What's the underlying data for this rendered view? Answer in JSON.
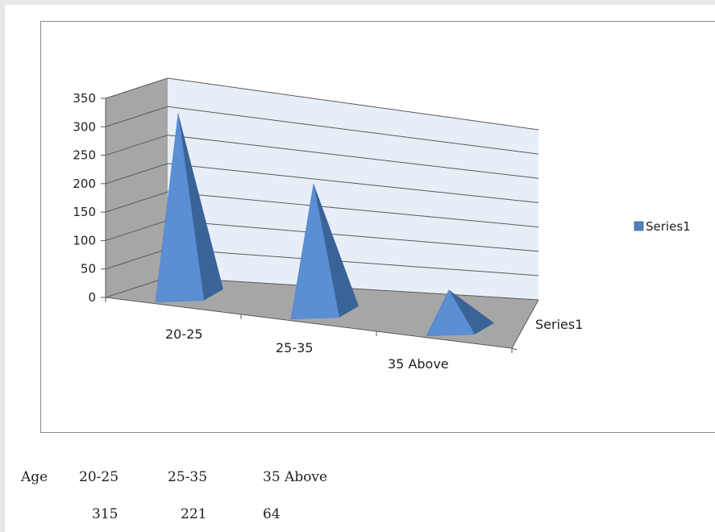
{
  "chart_data": {
    "type": "bar",
    "style": "3d-pyramid",
    "categories": [
      "20-25",
      "25-35",
      "35 Above"
    ],
    "series": [
      {
        "name": "Series1",
        "values": [
          315,
          221,
          64
        ],
        "color": "#4f81bd"
      }
    ],
    "depth_axis_labels": [
      "Series1"
    ],
    "ylim": [
      0,
      350
    ],
    "yticks": [
      0,
      50,
      100,
      150,
      200,
      250,
      300,
      350
    ],
    "grid": true,
    "legend": "right"
  },
  "table": {
    "row_header": "Age",
    "categories": [
      "20-25",
      "25-35",
      "35 Above"
    ],
    "values": [
      "315",
      "221",
      "64"
    ]
  }
}
